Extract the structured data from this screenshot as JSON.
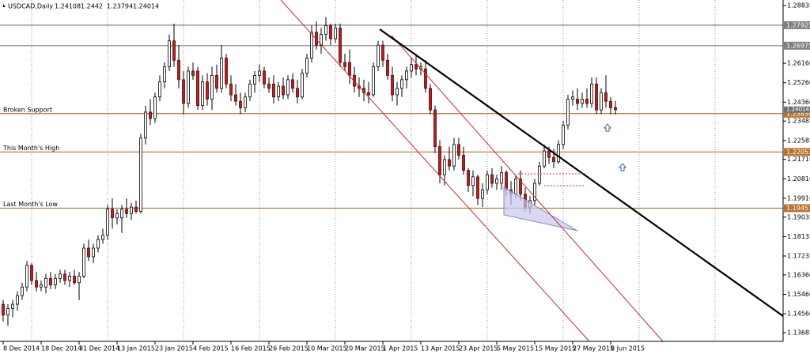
{
  "chart_data": {
    "type": "candlestick",
    "symbol": "USDCAD,Daily",
    "categories": [
      "8 Dec 2014",
      null,
      null,
      null,
      null,
      null,
      null,
      null,
      "18 Dec 2014",
      null,
      null,
      null,
      null,
      null,
      null,
      null,
      "31 Dec 2014",
      null,
      null,
      null,
      null,
      null,
      null,
      null,
      "13 Jan 2015",
      null,
      null,
      null,
      null,
      null,
      null,
      null,
      "23 Jan 2015",
      null,
      null,
      null,
      null,
      null,
      null,
      null,
      "4 Feb 2015",
      null,
      null,
      null,
      null,
      null,
      null,
      null,
      "16 Feb 2015",
      null,
      null,
      null,
      null,
      null,
      null,
      null,
      "26 Feb 2015",
      null,
      null,
      null,
      null,
      null,
      null,
      null,
      "10 Mar 2015",
      null,
      null,
      null,
      null,
      null,
      null,
      null,
      "20 Mar 2015",
      null,
      null,
      null,
      null,
      null,
      null,
      null,
      "1 Apr 2015",
      null,
      null,
      null,
      null,
      null,
      null,
      null,
      "13 Apr 2015",
      null,
      null,
      null,
      null,
      null,
      null,
      null,
      "23 Apr 2015",
      null,
      null,
      null,
      null,
      null,
      null,
      null,
      "5 May 2015",
      null,
      null,
      null,
      null,
      null,
      null,
      null,
      "15 May 2015",
      null,
      null,
      null,
      null,
      null,
      null,
      null,
      "27 May 2015",
      null,
      null,
      null,
      null,
      null,
      null,
      null,
      "8 Jun 2015",
      null
    ],
    "open": [
      1.15,
      1.145,
      1.148,
      1.15,
      1.154,
      1.158,
      1.168,
      1.161,
      1.158,
      1.158,
      1.162,
      1.159,
      1.162,
      1.164,
      1.161,
      1.163,
      1.16,
      1.163,
      1.176,
      1.172,
      1.176,
      1.18,
      1.182,
      1.194,
      1.19,
      1.19,
      1.194,
      1.192,
      1.195,
      1.193,
      1.227,
      1.239,
      1.236,
      1.246,
      1.253,
      1.26,
      1.272,
      1.263,
      1.254,
      1.243,
      1.258,
      1.258,
      1.242,
      1.253,
      1.245,
      1.256,
      1.25,
      1.264,
      1.252,
      1.247,
      1.244,
      1.241,
      1.246,
      1.252,
      1.256,
      1.258,
      1.252,
      1.252,
      1.246,
      1.251,
      1.247,
      1.254,
      1.25,
      1.246,
      1.257,
      1.264,
      1.276,
      1.27,
      1.275,
      1.279,
      1.273,
      1.278,
      1.262,
      1.262,
      1.256,
      1.251,
      1.25,
      1.248,
      1.247,
      1.26,
      1.27,
      1.263,
      1.256,
      1.247,
      1.25,
      1.254,
      1.258,
      1.261,
      1.259,
      1.259,
      1.25,
      1.24,
      1.223,
      1.21,
      1.217,
      1.214,
      1.224,
      1.219,
      1.212,
      1.205,
      1.209,
      1.199,
      1.203,
      1.21,
      1.206,
      1.206,
      1.211,
      1.203,
      1.201,
      1.208,
      1.201,
      1.195,
      1.198,
      1.206,
      1.214,
      1.221,
      1.218,
      1.216,
      1.224,
      1.233,
      1.245,
      1.245,
      1.243,
      1.245,
      1.243,
      1.252,
      1.24,
      1.248,
      1.244,
      1.24108
    ],
    "high": [
      1.152,
      1.15,
      1.152,
      1.156,
      1.16,
      1.17,
      1.169,
      1.165,
      1.161,
      1.164,
      1.165,
      1.164,
      1.166,
      1.166,
      1.165,
      1.166,
      1.165,
      1.178,
      1.18,
      1.178,
      1.182,
      1.185,
      1.196,
      1.199,
      1.194,
      1.196,
      1.199,
      1.197,
      1.198,
      1.229,
      1.242,
      1.245,
      1.248,
      1.256,
      1.262,
      1.275,
      1.28,
      1.27,
      1.258,
      1.26,
      1.262,
      1.26,
      1.256,
      1.257,
      1.26,
      1.261,
      1.27,
      1.266,
      1.256,
      1.252,
      1.248,
      1.248,
      1.254,
      1.258,
      1.261,
      1.26,
      1.255,
      1.256,
      1.253,
      1.255,
      1.256,
      1.257,
      1.254,
      1.259,
      1.266,
      1.279,
      1.281,
      1.278,
      1.283,
      1.28,
      1.28,
      1.28,
      1.266,
      1.268,
      1.26,
      1.255,
      1.254,
      1.253,
      1.262,
      1.272,
      1.272,
      1.266,
      1.26,
      1.253,
      1.256,
      1.26,
      1.264,
      1.266,
      1.262,
      1.263,
      1.252,
      1.242,
      1.226,
      1.219,
      1.223,
      1.227,
      1.227,
      1.223,
      1.213,
      1.212,
      1.21,
      1.206,
      1.212,
      1.213,
      1.21,
      1.214,
      1.212,
      1.207,
      1.21,
      1.212,
      1.204,
      1.2,
      1.208,
      1.216,
      1.224,
      1.223,
      1.222,
      1.226,
      1.235,
      1.247,
      1.249,
      1.25,
      1.248,
      1.25,
      1.255,
      1.255,
      1.25,
      1.256,
      1.246,
      1.2442
    ],
    "low": [
      1.142,
      1.14,
      1.144,
      1.147,
      1.152,
      1.156,
      1.159,
      1.156,
      1.156,
      1.155,
      1.157,
      1.157,
      1.16,
      1.159,
      1.158,
      1.159,
      1.152,
      1.162,
      1.17,
      1.169,
      1.174,
      1.178,
      1.18,
      1.185,
      1.187,
      1.183,
      1.19,
      1.189,
      1.192,
      1.192,
      1.224,
      1.233,
      1.234,
      1.244,
      1.25,
      1.258,
      1.26,
      1.25,
      1.238,
      1.241,
      1.254,
      1.24,
      1.24,
      1.242,
      1.24,
      1.248,
      1.248,
      1.25,
      1.244,
      1.242,
      1.238,
      1.239,
      1.244,
      1.248,
      1.253,
      1.25,
      1.248,
      1.243,
      1.244,
      1.245,
      1.245,
      1.248,
      1.243,
      1.245,
      1.255,
      1.262,
      1.268,
      1.266,
      1.272,
      1.27,
      1.271,
      1.26,
      1.258,
      1.252,
      1.248,
      1.246,
      1.244,
      1.243,
      1.246,
      1.258,
      1.26,
      1.254,
      1.244,
      1.242,
      1.246,
      1.25,
      1.255,
      1.256,
      1.256,
      1.248,
      1.238,
      1.22,
      1.206,
      1.205,
      1.212,
      1.212,
      1.217,
      1.21,
      1.202,
      1.2,
      1.196,
      1.195,
      1.201,
      1.204,
      1.203,
      1.203,
      1.2,
      1.196,
      1.199,
      1.198,
      1.193,
      1.192,
      1.196,
      1.205,
      1.213,
      1.215,
      1.213,
      1.215,
      1.222,
      1.231,
      1.242,
      1.24,
      1.241,
      1.241,
      1.241,
      1.238,
      1.238,
      1.241,
      1.238,
      1.23794
    ],
    "close": [
      1.145,
      1.148,
      1.15,
      1.154,
      1.158,
      1.168,
      1.161,
      1.158,
      1.159,
      1.162,
      1.159,
      1.162,
      1.164,
      1.161,
      1.163,
      1.16,
      1.163,
      1.176,
      1.172,
      1.176,
      1.18,
      1.182,
      1.194,
      1.19,
      1.192,
      1.194,
      1.192,
      1.195,
      1.193,
      1.227,
      1.239,
      1.236,
      1.246,
      1.253,
      1.26,
      1.272,
      1.263,
      1.254,
      1.243,
      1.258,
      1.256,
      1.242,
      1.253,
      1.245,
      1.256,
      1.25,
      1.264,
      1.252,
      1.247,
      1.244,
      1.241,
      1.246,
      1.252,
      1.256,
      1.258,
      1.252,
      1.25,
      1.246,
      1.251,
      1.247,
      1.254,
      1.25,
      1.246,
      1.257,
      1.264,
      1.276,
      1.27,
      1.275,
      1.279,
      1.273,
      1.278,
      1.262,
      1.26,
      1.256,
      1.251,
      1.25,
      1.248,
      1.247,
      1.26,
      1.27,
      1.263,
      1.256,
      1.247,
      1.25,
      1.254,
      1.258,
      1.261,
      1.259,
      1.26,
      1.25,
      1.24,
      1.223,
      1.21,
      1.217,
      1.214,
      1.224,
      1.219,
      1.212,
      1.205,
      1.209,
      1.199,
      1.203,
      1.21,
      1.206,
      1.208,
      1.211,
      1.203,
      1.201,
      1.208,
      1.201,
      1.195,
      1.198,
      1.206,
      1.214,
      1.221,
      1.218,
      1.216,
      1.224,
      1.233,
      1.245,
      1.246,
      1.243,
      1.245,
      1.243,
      1.252,
      1.24,
      1.248,
      1.244,
      1.241,
      1.24014
    ],
    "up_color": "#ffffff",
    "down_color": "#b22222",
    "ylim": [
      1.13282,
      1.29091
    ],
    "yticks": [
      1.28835,
      {
        "value": 1.2616,
        "label": "1.26160"
      },
      {
        "value": 1.2526,
        "label": "1.25260"
      },
      {
        "value": 1.2436,
        "label": "1.24360"
      },
      1.23485,
      1.22585,
      {
        "value": 1.2171,
        "label": "1.21710"
      },
      {
        "value": 1.2081,
        "label": "1.20810"
      },
      {
        "value": 1.1991,
        "label": "1.19910"
      },
      1.19035,
      1.18135,
      1.17235,
      {
        "value": 1.1636,
        "label": "1.16360"
      },
      {
        "value": 1.1546,
        "label": "1.15460"
      },
      {
        "value": 1.1456,
        "label": "1.14560"
      },
      1.13685
    ],
    "levels": [
      {
        "value": 1.27925,
        "color": "#808080"
      },
      {
        "value": 1.26975,
        "color": "#808080"
      },
      {
        "name": "Broken Support",
        "value": 1.2383,
        "label": "1.23830",
        "color": "#b87333"
      },
      {
        "name": "This Month's High",
        "value": 1.22053,
        "color": "#b87333"
      },
      {
        "name": "Last Month's Low",
        "value": 1.19451,
        "color": "#b87333"
      }
    ]
  }
}
